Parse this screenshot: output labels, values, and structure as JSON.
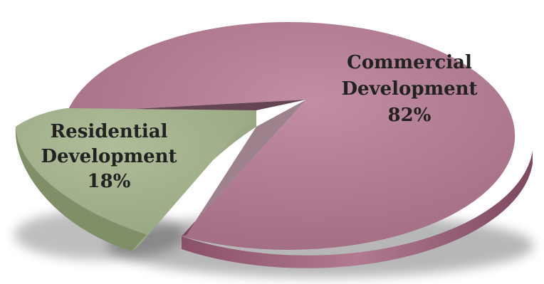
{
  "chart_data": {
    "type": "pie",
    "style": "3d-exploded",
    "legend": "none",
    "slices": [
      {
        "label_lines": [
          "Commercial",
          "Development"
        ],
        "value_label": "82%",
        "value": 82,
        "color": "#b27a92"
      },
      {
        "label_lines": [
          "Residential",
          "Development"
        ],
        "value_label": "18%",
        "value": 18,
        "color": "#a1b18c"
      }
    ]
  }
}
